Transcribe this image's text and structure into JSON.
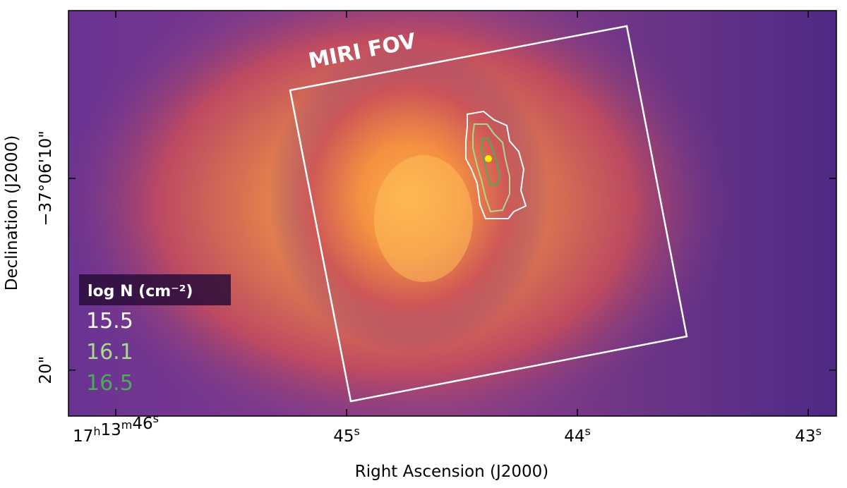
{
  "chart_data": {
    "type": "image",
    "xlabel": "Right Ascension (J2000)",
    "ylabel": "Declination (J2000)",
    "annotation": "MIRI FOV",
    "xlim": [
      46.205,
      42.878
    ],
    "ylim": [
      1.25,
      22.4
    ],
    "xticks": [
      {
        "value": 46,
        "label": "17h13m46s"
      },
      {
        "value": 45,
        "label": "45s"
      },
      {
        "value": 44,
        "label": "44s"
      },
      {
        "value": 43,
        "label": "43s"
      }
    ],
    "yticks": [
      {
        "value": 10,
        "label": "−37°06'10\""
      },
      {
        "value": 20,
        "label": "20\""
      }
    ],
    "legend_title": "log N (cm⁻²)",
    "series": [
      {
        "name": "15.5",
        "color": "#ffffff"
      },
      {
        "name": "16.1",
        "color": "#a8d98f"
      },
      {
        "name": "16.5",
        "color": "#4daa5c"
      }
    ]
  }
}
